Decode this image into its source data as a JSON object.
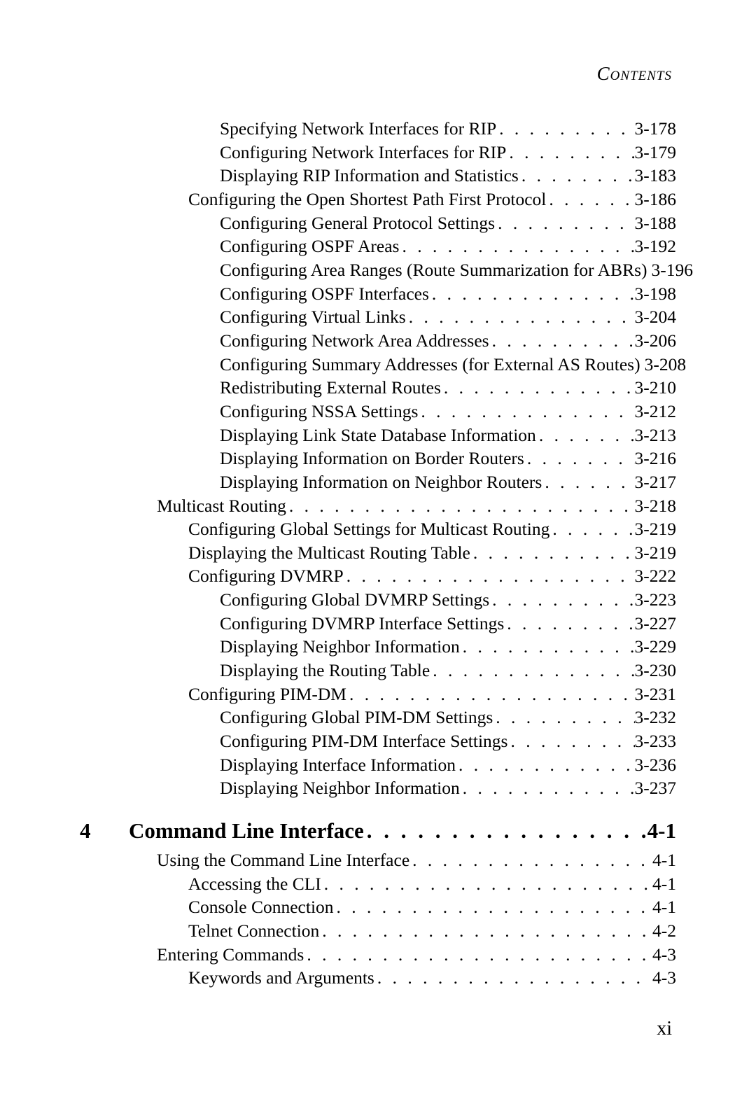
{
  "header": "Contents",
  "entries": [
    {
      "indent": 3,
      "title": "Specifying Network Interfaces for RIP",
      "page": "3-178",
      "leaders": true
    },
    {
      "indent": 3,
      "title": "Configuring Network Interfaces for RIP",
      "page": "3-179",
      "leaders": true
    },
    {
      "indent": 3,
      "title": "Displaying RIP Information and Statistics",
      "page": "3-183",
      "leaders": true
    },
    {
      "indent": 2,
      "title": "Configuring the Open Shortest Path First Protocol",
      "page": "3-186",
      "leaders": true
    },
    {
      "indent": 3,
      "title": "Configuring General Protocol Settings",
      "page": "3-188",
      "leaders": true
    },
    {
      "indent": 3,
      "title": "Configuring OSPF Areas",
      "page": "3-192",
      "leaders": true
    },
    {
      "indent": 3,
      "title": "Configuring Area Ranges (Route Summarization for ABRs)",
      "page": "3-196",
      "leaders": false,
      "tight": true
    },
    {
      "indent": 3,
      "title": "Configuring OSPF Interfaces",
      "page": "3-198",
      "leaders": true
    },
    {
      "indent": 3,
      "title": "Configuring Virtual Links",
      "page": "3-204",
      "leaders": true
    },
    {
      "indent": 3,
      "title": "Configuring Network Area Addresses",
      "page": "3-206",
      "leaders": true
    },
    {
      "indent": 3,
      "title": "Configuring Summary Addresses (for External AS Routes)",
      "page": "3-208",
      "leaders": false,
      "tight": true
    },
    {
      "indent": 3,
      "title": "Redistributing External Routes",
      "page": "3-210",
      "leaders": true
    },
    {
      "indent": 3,
      "title": "Configuring NSSA Settings",
      "page": "3-212",
      "leaders": true
    },
    {
      "indent": 3,
      "title": "Displaying Link State Database Information",
      "page": "3-213",
      "leaders": true
    },
    {
      "indent": 3,
      "title": "Displaying Information on Border Routers",
      "page": "3-216",
      "leaders": true
    },
    {
      "indent": 3,
      "title": "Displaying Information on Neighbor Routers",
      "page": "3-217",
      "leaders": true
    },
    {
      "indent": 1,
      "title": "Multicast Routing",
      "page": "3-218",
      "leaders": true
    },
    {
      "indent": 2,
      "title": "Configuring Global Settings for Multicast Routing",
      "page": "3-219",
      "leaders": true
    },
    {
      "indent": 2,
      "title": "Displaying the Multicast Routing Table",
      "page": "3-219",
      "leaders": true
    },
    {
      "indent": 2,
      "title": "Configuring DVMRP",
      "page": "3-222",
      "leaders": true
    },
    {
      "indent": 3,
      "title": "Configuring Global DVMRP Settings",
      "page": "3-223",
      "leaders": true
    },
    {
      "indent": 3,
      "title": "Configuring DVMRP Interface Settings",
      "page": "3-227",
      "leaders": true
    },
    {
      "indent": 3,
      "title": "Displaying Neighbor Information",
      "page": "3-229",
      "leaders": true
    },
    {
      "indent": 3,
      "title": "Displaying the Routing Table",
      "page": "3-230",
      "leaders": true
    },
    {
      "indent": 2,
      "title": "Configuring PIM-DM",
      "page": "3-231",
      "leaders": true
    },
    {
      "indent": 3,
      "title": "Configuring Global PIM-DM Settings",
      "page": "3-232",
      "leaders": true
    },
    {
      "indent": 3,
      "title": "Configuring PIM-DM Interface Settings",
      "page": "3-233",
      "leaders": true
    },
    {
      "indent": 3,
      "title": "Displaying Interface Information",
      "page": "3-236",
      "leaders": true
    },
    {
      "indent": 3,
      "title": "Displaying Neighbor Information",
      "page": "3-237",
      "leaders": true
    }
  ],
  "chapter": {
    "num": "4",
    "title": "Command Line Interface",
    "page": "4-1"
  },
  "chapter_entries": [
    {
      "indent": 1,
      "title": "Using the Command Line Interface",
      "page": "4-1",
      "leaders": true
    },
    {
      "indent": 2,
      "title": "Accessing the CLI",
      "page": "4-1",
      "leaders": true
    },
    {
      "indent": 2,
      "title": "Console Connection",
      "page": "4-1",
      "leaders": true
    },
    {
      "indent": 2,
      "title": "Telnet Connection",
      "page": "4-2",
      "leaders": true
    },
    {
      "indent": 1,
      "title": "Entering Commands",
      "page": "4-3",
      "leaders": true
    },
    {
      "indent": 2,
      "title": "Keywords and Arguments",
      "page": "4-3",
      "leaders": true
    }
  ],
  "leader_char": ". . . . . . . . . . . . . . . . . . . . . . . . . . . . . . . . . . . . . . . . . . . . . . . . . . . . . . . . . . . .",
  "chapter_leader": " . . . . . . . . . . . . . . . . . . . . . . ",
  "pagefoot": "xi"
}
